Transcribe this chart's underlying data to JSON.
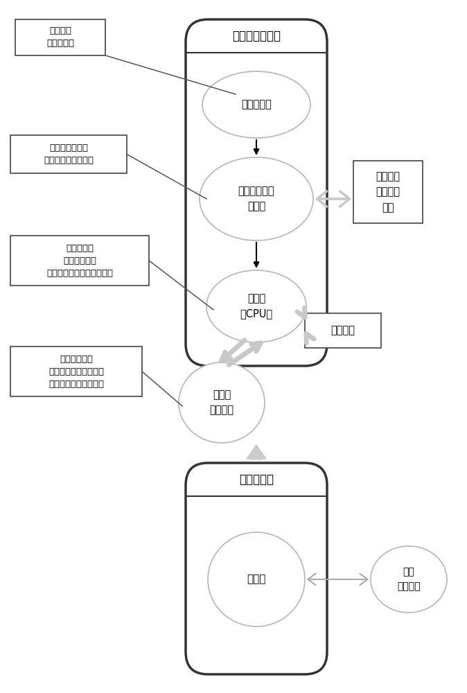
{
  "bg_color": "#ffffff",
  "title_phone1": "判断图片有效性",
  "title_phone2": "图片的获取",
  "circle1_label": "距离感应仪",
  "circle2_label": "重力感应仪或\n陀螺仪",
  "circle3_label": "处理器\n（CPU）",
  "circle4_label": "存储器\n（内存）",
  "circle5_label": "摄像头",
  "box1_label": "获取手机\n空间的角度",
  "box2_label": "获取手机正面与\n基准面的夹角和方向",
  "box3_label": "根据角度和\n距离处理图片\n，如果有效提取图片并分析",
  "box4_label": "数据的存储：\n原始图片、面部图片、\n瞳孔位置坐标等数据。",
  "box5_label": "判断图片\n的有效性\n模块",
  "box6_label": "其他模块",
  "circle6_label": "获取\n图片模块",
  "arrow_color": "#c8c8c8",
  "line_color": "#555555",
  "phone_border_color": "#333333",
  "ellipse_color": "#bbbbbb"
}
